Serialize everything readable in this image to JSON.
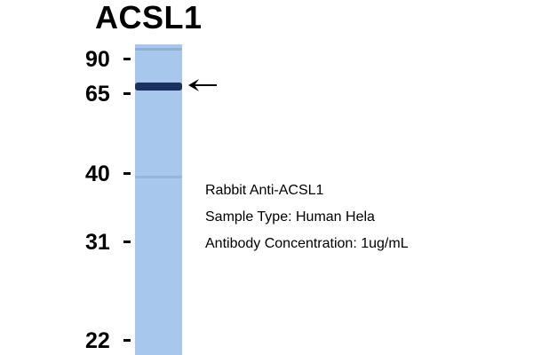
{
  "title": "ACSL1",
  "markers": [
    {
      "label": "90",
      "kda": 90
    },
    {
      "label": "65",
      "kda": 65
    },
    {
      "label": "40",
      "kda": 40
    },
    {
      "label": "31",
      "kda": 31
    },
    {
      "label": "22",
      "kda": 22
    }
  ],
  "lane_color": "#a7c7ec",
  "band_color": "#1a3260",
  "info": {
    "antibody": "Rabbit Anti-ACSL1",
    "sample": "Sample Type: Human Hela",
    "concentration": "Antibody Concentration: 1ug/mL"
  },
  "icons": {
    "arrow": "arrow-left-icon"
  }
}
